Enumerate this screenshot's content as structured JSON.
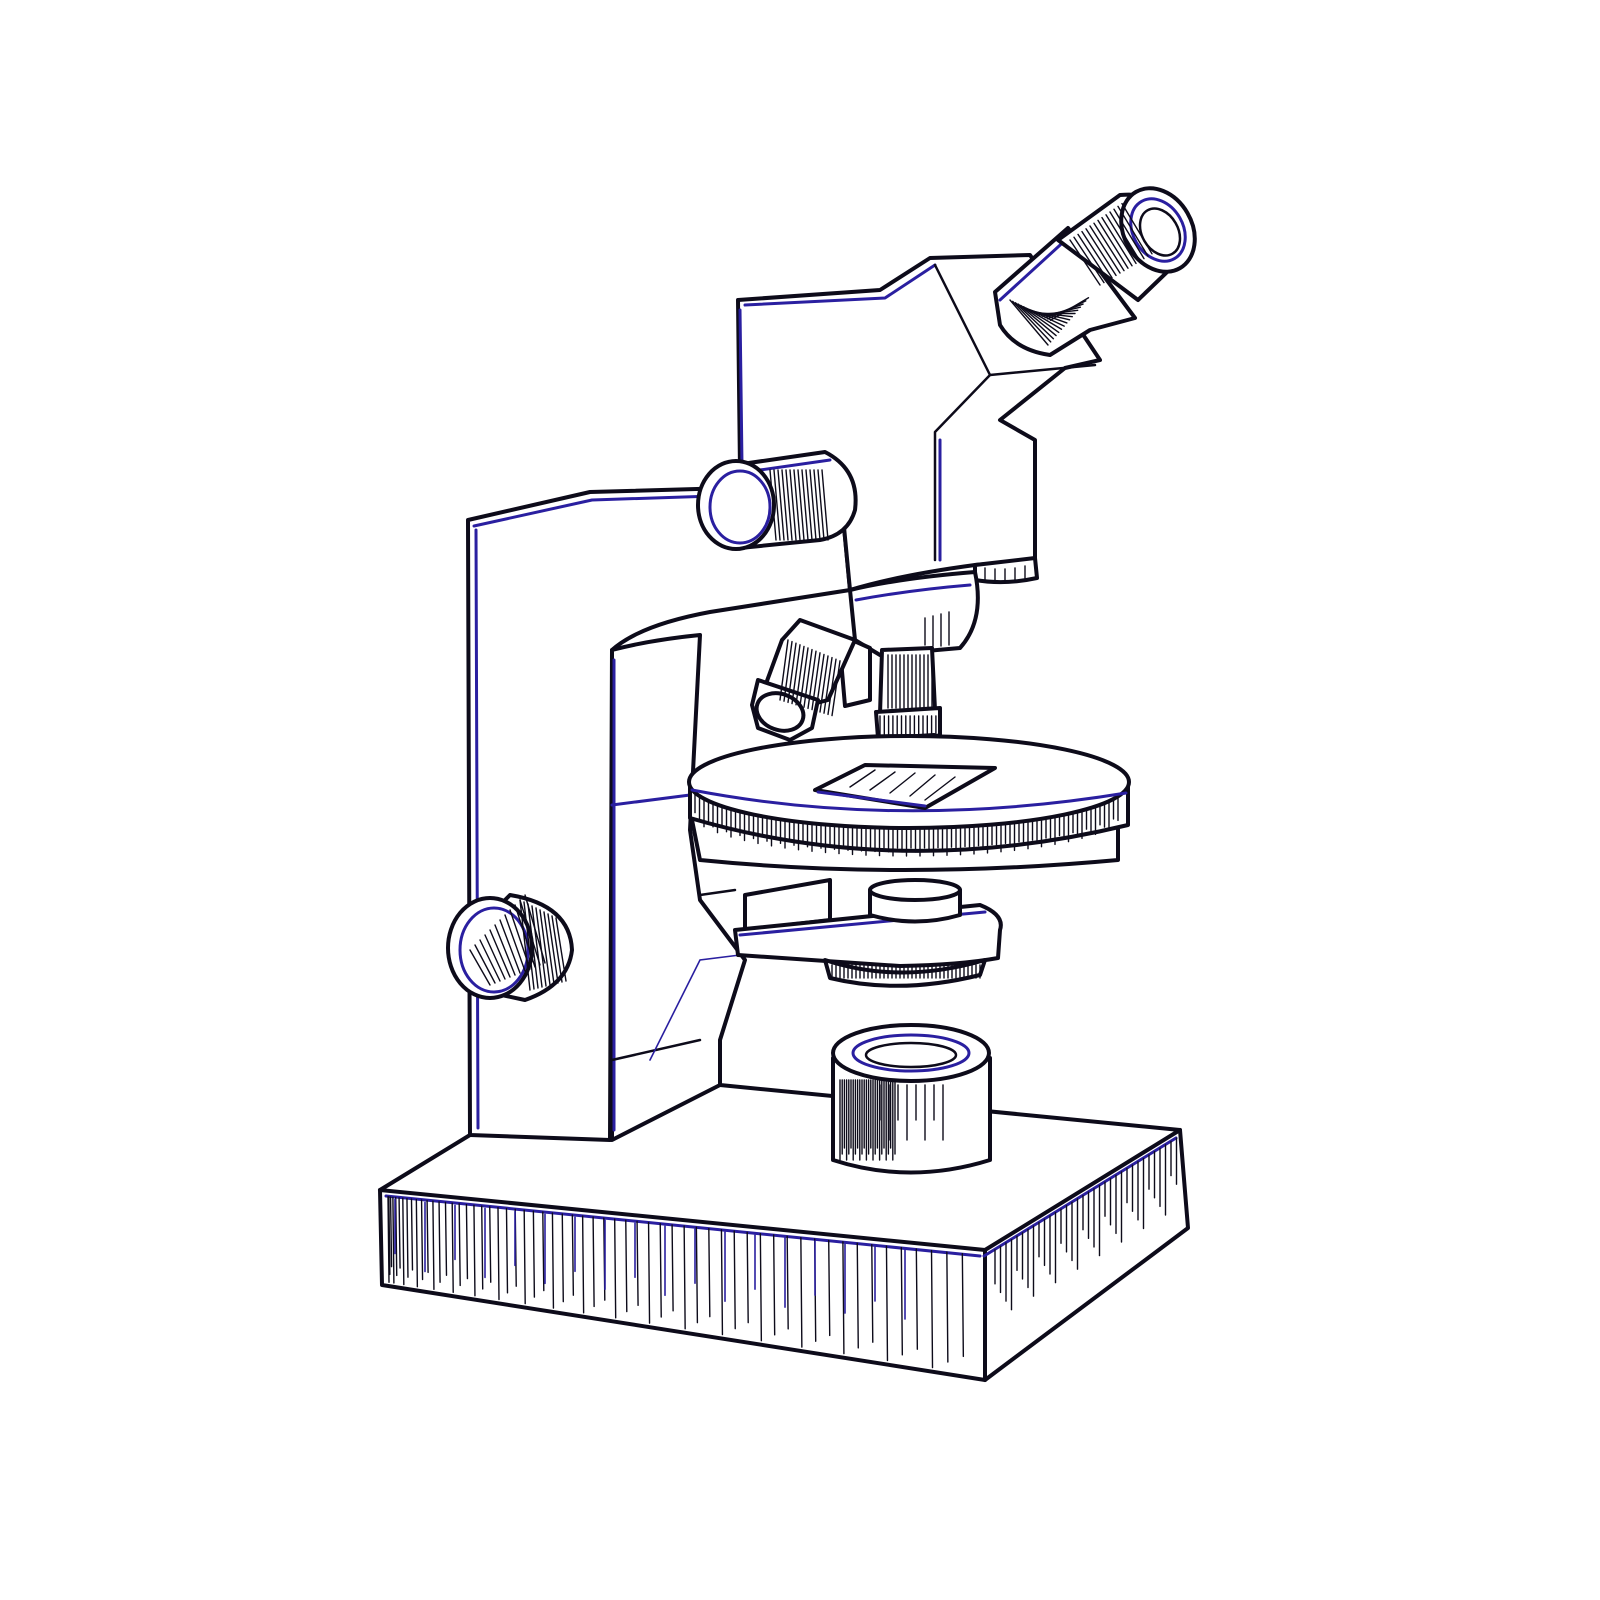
{
  "image": {
    "subject": "microscope",
    "style": "hand-drawn line illustration",
    "background_color": "#ffffff",
    "ink_color": "#0d0b1a",
    "accent_color": "#2a1fa0"
  }
}
